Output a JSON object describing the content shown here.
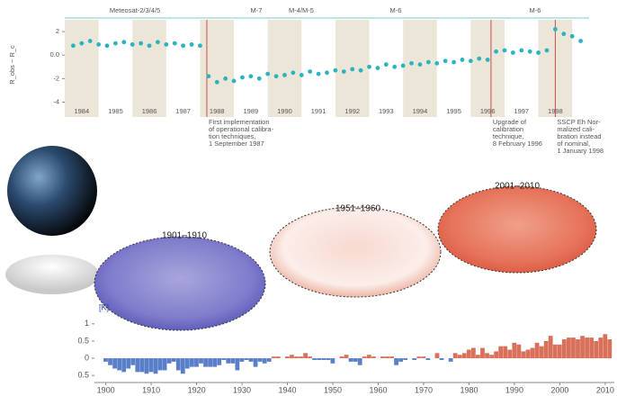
{
  "chart_data": [
    {
      "type": "line",
      "y_label": "R_obs − R_c",
      "segments": [
        "Meteosat-2/3/4/5",
        "M-7",
        "M-4/M-5",
        "M-6",
        "M-6"
      ],
      "xlim": [
        1983.5,
        1999
      ],
      "xticks": [
        1984,
        1985,
        1986,
        1987,
        1988,
        1989,
        1990,
        1991,
        1992,
        1993,
        1994,
        1995,
        1996,
        1997,
        1998
      ],
      "ylim": [
        -4.5,
        3
      ],
      "yticks": [
        2,
        {
          "value": 0,
          "label": "0.0"
        },
        -2,
        -4
      ],
      "series": [
        {
          "color": "#2bb3c0",
          "x": [
            1983.75,
            1984,
            1984.25,
            1984.5,
            1984.75,
            1985,
            1985.25,
            1985.5,
            1985.75,
            1986,
            1986.25,
            1986.5,
            1986.75,
            1987,
            1987.25,
            1987.5,
            1987.75,
            1988,
            1988.25,
            1988.5,
            1988.75,
            1989,
            1989.25,
            1989.5,
            1989.75,
            1990,
            1990.25,
            1990.5,
            1990.75,
            1991,
            1991.25,
            1991.5,
            1991.75,
            1992,
            1992.25,
            1992.5,
            1992.75,
            1993,
            1993.25,
            1993.5,
            1993.75,
            1994,
            1994.25,
            1994.5,
            1994.75,
            1995,
            1995.25,
            1995.5,
            1995.75,
            1996,
            1996.25,
            1996.5,
            1996.75,
            1997,
            1997.25,
            1997.5,
            1997.75,
            1998,
            1998.25,
            1998.5,
            1998.75
          ],
          "values": [
            0.8,
            1.0,
            1.2,
            0.9,
            0.8,
            1.0,
            1.1,
            0.9,
            1.0,
            0.8,
            1.1,
            0.9,
            1.0,
            0.8,
            0.9,
            0.8,
            -1.8,
            -2.3,
            -2.0,
            -2.2,
            -1.9,
            -1.8,
            -2.0,
            -1.6,
            -1.8,
            -1.7,
            -1.5,
            -1.7,
            -1.4,
            -1.6,
            -1.5,
            -1.3,
            -1.4,
            -1.2,
            -1.3,
            -1.0,
            -1.1,
            -0.8,
            -1.0,
            -0.9,
            -0.7,
            -0.8,
            -0.6,
            -0.7,
            -0.5,
            -0.6,
            -0.4,
            -0.5,
            -0.3,
            -0.4,
            0.3,
            0.4,
            0.2,
            0.4,
            0.3,
            0.2,
            0.4,
            2.2,
            1.8,
            1.6,
            1.2
          ]
        }
      ],
      "annotations": [
        {
          "x": 1987.7,
          "lines": [
            "First implementation",
            "of operational calibra-",
            "tion techniques,",
            "1 September 1987"
          ]
        },
        {
          "x": 1996.1,
          "lines": [
            "Upgrade of",
            "calibration",
            "technique,",
            "8 February 1996"
          ]
        },
        {
          "x": 1998.0,
          "lines": [
            "SSCP Eh Nor-",
            "malized cali-",
            "bration instead",
            "of nominal,",
            "1 January 1998"
          ]
        }
      ]
    },
    {
      "type": "bar",
      "unit_label": "[K]",
      "positive_color": "#d9705a",
      "negative_color": "#5a7fc9",
      "xlim": [
        1897.5,
        2012
      ],
      "xticks": [
        1900,
        1910,
        1920,
        1930,
        1940,
        1950,
        1960,
        1970,
        1980,
        1990,
        2000,
        2010
      ],
      "ylim": [
        -0.6,
        1.1
      ],
      "yticks": [
        {
          "value": -0.5,
          "label": "0.5"
        },
        0,
        0.5,
        1
      ],
      "x": [
        1900,
        1901,
        1902,
        1903,
        1904,
        1905,
        1906,
        1907,
        1908,
        1909,
        1910,
        1911,
        1912,
        1913,
        1914,
        1915,
        1916,
        1917,
        1918,
        1919,
        1920,
        1921,
        1922,
        1923,
        1924,
        1925,
        1926,
        1927,
        1928,
        1929,
        1930,
        1931,
        1932,
        1933,
        1934,
        1935,
        1936,
        1937,
        1938,
        1939,
        1940,
        1941,
        1942,
        1943,
        1944,
        1945,
        1946,
        1947,
        1948,
        1949,
        1950,
        1951,
        1952,
        1953,
        1954,
        1955,
        1956,
        1957,
        1958,
        1959,
        1960,
        1961,
        1962,
        1963,
        1964,
        1965,
        1966,
        1967,
        1968,
        1969,
        1970,
        1971,
        1972,
        1973,
        1974,
        1975,
        1976,
        1977,
        1978,
        1979,
        1980,
        1981,
        1982,
        1983,
        1984,
        1985,
        1986,
        1987,
        1988,
        1989,
        1990,
        1991,
        1992,
        1993,
        1994,
        1995,
        1996,
        1997,
        1998,
        1999,
        2000,
        2001,
        2002,
        2003,
        2004,
        2005,
        2006,
        2007,
        2008,
        2009,
        2010,
        2011
      ],
      "values": [
        -0.1,
        -0.2,
        -0.3,
        -0.35,
        -0.4,
        -0.3,
        -0.2,
        -0.4,
        -0.4,
        -0.45,
        -0.4,
        -0.45,
        -0.35,
        -0.35,
        -0.15,
        -0.1,
        -0.35,
        -0.45,
        -0.3,
        -0.25,
        -0.25,
        -0.15,
        -0.25,
        -0.25,
        -0.25,
        -0.2,
        -0.05,
        -0.15,
        -0.15,
        -0.35,
        -0.1,
        -0.05,
        -0.1,
        -0.25,
        -0.1,
        -0.15,
        -0.1,
        0.05,
        0.05,
        0.0,
        0.05,
        0.1,
        0.05,
        0.05,
        0.15,
        0.05,
        -0.05,
        -0.05,
        -0.05,
        -0.05,
        -0.15,
        0.0,
        0.05,
        0.1,
        -0.1,
        -0.1,
        -0.2,
        0.05,
        0.1,
        0.05,
        0.0,
        0.05,
        0.05,
        0.05,
        -0.2,
        -0.1,
        -0.05,
        0.0,
        -0.05,
        0.05,
        0.05,
        -0.05,
        0.0,
        0.15,
        -0.05,
        0.0,
        -0.1,
        0.15,
        0.1,
        0.15,
        0.25,
        0.3,
        0.1,
        0.3,
        0.15,
        0.1,
        0.2,
        0.35,
        0.35,
        0.25,
        0.45,
        0.4,
        0.2,
        0.25,
        0.3,
        0.45,
        0.35,
        0.5,
        0.65,
        0.4,
        0.4,
        0.55,
        0.6,
        0.6,
        0.55,
        0.65,
        0.6,
        0.6,
        0.5,
        0.6,
        0.7,
        0.55
      ]
    }
  ],
  "maps": [
    {
      "label": "1901–1910"
    },
    {
      "label": "1951–1960"
    },
    {
      "label": "2001–2010"
    }
  ]
}
